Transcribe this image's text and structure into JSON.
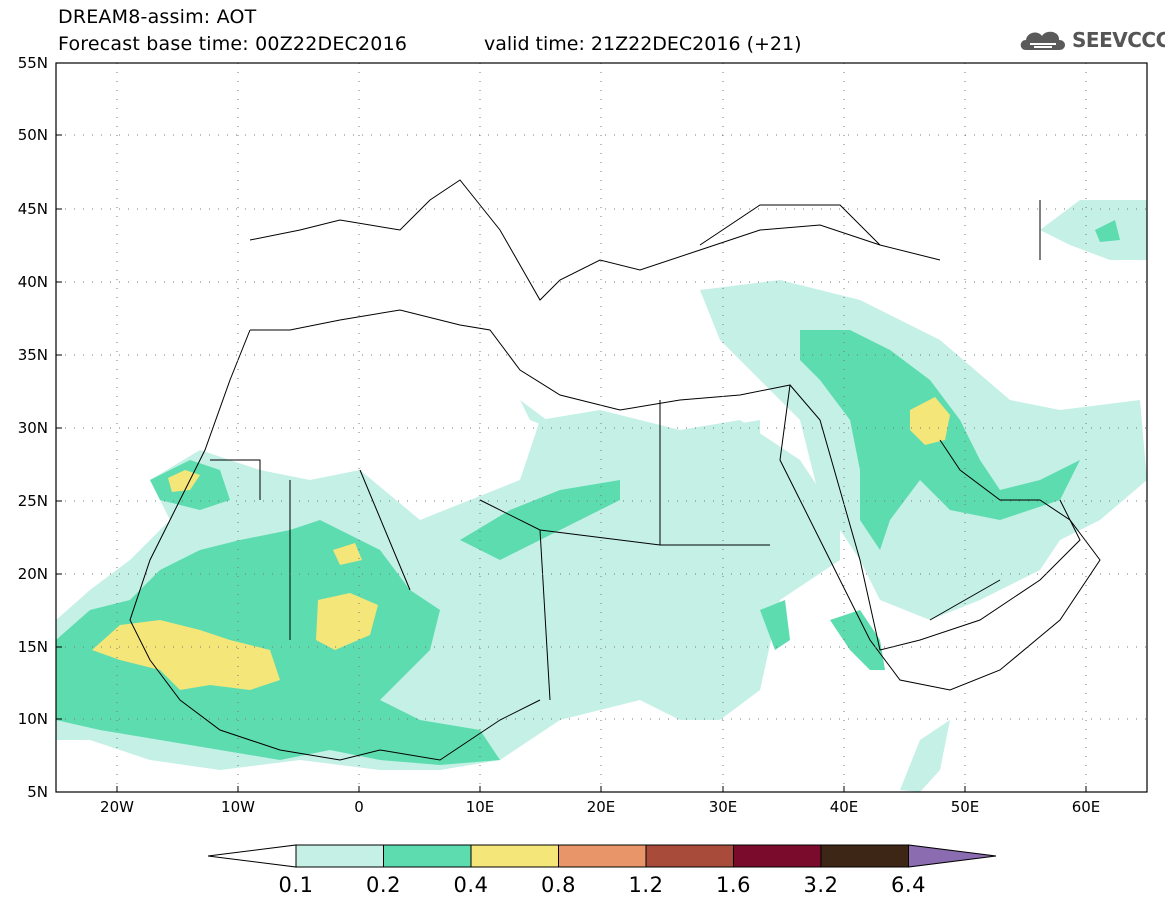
{
  "header": {
    "line1": "DREAM8-assim: AOT",
    "line2": "Forecast base time: 00Z22DEC2016",
    "valid": "valid time: 21Z22DEC2016 (+21)"
  },
  "logo": {
    "text": "SEEVCCC",
    "icon": "cloud-logo-icon"
  },
  "map": {
    "lat_range": [
      5,
      55
    ],
    "lon_range": [
      -25,
      65
    ],
    "lat_ticks": [
      "5N",
      "10N",
      "15N",
      "20N",
      "25N",
      "30N",
      "35N",
      "40N",
      "45N",
      "50N",
      "55N"
    ],
    "lon_ticks": [
      "20W",
      "10W",
      "0",
      "10E",
      "20E",
      "30E",
      "40E",
      "50E",
      "60E"
    ],
    "grid": "dotted"
  },
  "colorbar": {
    "labels": [
      "0.1",
      "0.2",
      "0.4",
      "0.8",
      "1.2",
      "1.6",
      "3.2",
      "6.4"
    ],
    "colors": [
      "#ffffff",
      "#c4f0e6",
      "#5ddcb0",
      "#f5e67a",
      "#e8956a",
      "#a84b3a",
      "#7a0b2c",
      "#3e2616",
      "#8c6cb0"
    ]
  }
}
